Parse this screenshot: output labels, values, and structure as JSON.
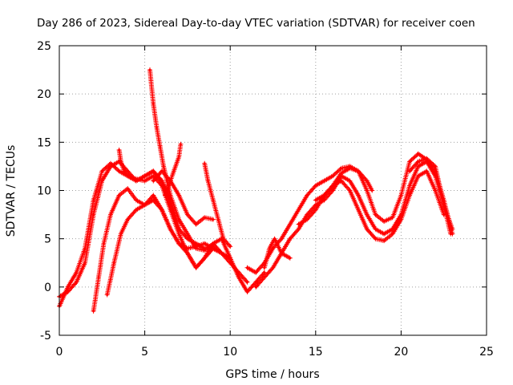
{
  "chart_data": {
    "type": "scatter",
    "title": "Day 286 of 2023, Sidereal Day-to-day VTEC variation (SDTVAR) for receiver coen",
    "xlabel": "GPS time / hours",
    "ylabel": "SDTVAR / TECUs",
    "xlim": [
      0,
      25
    ],
    "ylim": [
      -5,
      25
    ],
    "xticks": [
      0,
      5,
      10,
      15,
      20,
      25
    ],
    "yticks": [
      -5,
      0,
      5,
      10,
      15,
      20,
      25
    ],
    "grid": true,
    "marker": "+",
    "color": "#ff0000",
    "series": [
      {
        "name": "track-1",
        "x": [
          0.0,
          0.5,
          1.0,
          1.5,
          2.0,
          2.5,
          3.0,
          3.5,
          4.0,
          4.5,
          5.0,
          5.5,
          6.0,
          6.5,
          7.0,
          7.5,
          8.0,
          8.5,
          9.0,
          9.5,
          10.0,
          10.5,
          11.0,
          11.5,
          12.0
        ],
        "y": [
          -2.0,
          0.0,
          1.5,
          4.0,
          9.0,
          12.0,
          12.8,
          12.0,
          11.5,
          11.2,
          11.0,
          11.5,
          10.5,
          8.0,
          5.5,
          3.5,
          2.0,
          3.0,
          4.5,
          5.0,
          3.0,
          1.0,
          -0.5,
          0.5,
          1.5
        ]
      },
      {
        "name": "track-2",
        "x": [
          0.0,
          0.5,
          1.0,
          1.5,
          2.0,
          2.5,
          3.0,
          3.5,
          4.0,
          4.5,
          5.0,
          5.5,
          6.0,
          6.5,
          7.0
        ],
        "y": [
          -1.0,
          -0.5,
          0.5,
          2.5,
          7.5,
          11.0,
          12.5,
          13.0,
          12.0,
          11.0,
          11.5,
          12.0,
          11.0,
          9.0,
          6.0
        ]
      },
      {
        "name": "track-3",
        "x": [
          2.0,
          2.3,
          2.6,
          3.0,
          3.5,
          4.0,
          4.5,
          5.0,
          5.5,
          6.0,
          6.5,
          7.0,
          7.5,
          8.0,
          8.5,
          9.0,
          9.5,
          10.0
        ],
        "y": [
          -2.5,
          1.0,
          4.5,
          7.5,
          9.5,
          10.2,
          9.0,
          8.5,
          9.5,
          8.0,
          6.0,
          4.5,
          4.0,
          4.2,
          4.5,
          4.0,
          3.5,
          3.0
        ]
      },
      {
        "name": "track-4",
        "x": [
          2.8,
          3.2,
          3.6,
          4.0,
          4.5,
          5.0,
          5.5,
          6.0,
          6.5,
          7.0,
          7.5,
          8.0,
          8.5,
          9.0
        ],
        "y": [
          -0.8,
          2.5,
          5.5,
          7.0,
          8.0,
          8.5,
          9.0,
          8.0,
          6.0,
          4.5,
          3.5,
          2.0,
          3.0,
          4.0
        ]
      },
      {
        "name": "track-5",
        "x": [
          3.5,
          3.6,
          3.8,
          4.0,
          4.5,
          5.0,
          5.5,
          6.0,
          6.5,
          7.0,
          7.5,
          8.0,
          8.5,
          9.0,
          9.5,
          10.0,
          10.5,
          11.0
        ],
        "y": [
          14.2,
          13.0,
          12.0,
          11.5,
          11.0,
          11.5,
          12.0,
          11.0,
          8.5,
          6.0,
          5.0,
          4.5,
          4.0,
          4.0,
          3.5,
          2.5,
          1.5,
          0.5
        ]
      },
      {
        "name": "track-6",
        "x": [
          5.3,
          5.5,
          5.7,
          5.9,
          6.1,
          6.3,
          6.5,
          7.0,
          7.5,
          8.0,
          8.5,
          9.0,
          9.5
        ],
        "y": [
          22.5,
          19.0,
          16.5,
          14.5,
          12.5,
          11.0,
          9.5,
          7.0,
          5.5,
          4.0,
          3.8,
          4.5,
          3.5
        ]
      },
      {
        "name": "track-7",
        "x": [
          5.5,
          6.0,
          6.5,
          7.0,
          7.5,
          8.0,
          8.5,
          9.0
        ],
        "y": [
          11.0,
          12.0,
          11.0,
          9.5,
          7.5,
          6.5,
          7.2,
          7.0
        ]
      },
      {
        "name": "track-8",
        "x": [
          6.2,
          6.4,
          6.7,
          7.0,
          7.1
        ],
        "y": [
          9.5,
          10.5,
          12.0,
          13.5,
          14.8
        ]
      },
      {
        "name": "track-9",
        "x": [
          8.5,
          8.7,
          9.0,
          9.3,
          9.6,
          10.0
        ],
        "y": [
          12.8,
          11.0,
          9.0,
          7.0,
          5.0,
          4.2
        ]
      },
      {
        "name": "track-10",
        "x": [
          11.0,
          11.5,
          12.0,
          12.5,
          13.0,
          13.5,
          14.0,
          14.5,
          15.0,
          15.5,
          16.0,
          16.5,
          17.0,
          17.5,
          18.0,
          18.5,
          19.0,
          19.5,
          20.0,
          20.5,
          21.0,
          21.5,
          22.0,
          22.5,
          23.0
        ],
        "y": [
          2.0,
          1.5,
          2.5,
          4.0,
          5.0,
          6.5,
          8.0,
          9.5,
          10.5,
          11.0,
          11.5,
          12.3,
          12.5,
          12.0,
          10.0,
          7.5,
          6.8,
          7.2,
          9.5,
          13.0,
          13.8,
          13.2,
          12.0,
          9.0,
          5.5
        ]
      },
      {
        "name": "track-11",
        "x": [
          11.5,
          12.0,
          12.5,
          13.0,
          13.5,
          14.0,
          14.5,
          15.0,
          15.5,
          16.0,
          16.5,
          17.0,
          17.5,
          18.0,
          18.5,
          19.0,
          19.5,
          20.0,
          20.5,
          21.0,
          21.5,
          22.0,
          22.5,
          23.0
        ],
        "y": [
          0.0,
          1.0,
          2.0,
          3.5,
          5.0,
          6.0,
          7.5,
          8.5,
          9.0,
          10.0,
          11.5,
          11.0,
          9.5,
          7.5,
          6.0,
          5.5,
          6.0,
          7.5,
          10.5,
          12.5,
          13.0,
          11.5,
          8.5,
          6.0
        ]
      },
      {
        "name": "track-12",
        "x": [
          14.0,
          14.5,
          15.0,
          15.5,
          16.0,
          16.5,
          17.0,
          17.5,
          18.0,
          18.5,
          19.0,
          19.5,
          20.0,
          20.5,
          21.0,
          21.5,
          22.0,
          22.5
        ],
        "y": [
          6.5,
          7.0,
          8.0,
          9.5,
          10.5,
          11.0,
          10.0,
          8.0,
          6.0,
          5.0,
          4.8,
          5.5,
          7.0,
          9.5,
          11.5,
          12.0,
          10.0,
          7.5
        ]
      },
      {
        "name": "track-13",
        "x": [
          12.0,
          12.3,
          12.6,
          13.0,
          13.5
        ],
        "y": [
          2.0,
          4.0,
          5.0,
          3.5,
          3.0
        ]
      },
      {
        "name": "track-14",
        "x": [
          15.0,
          15.5,
          16.0,
          16.5,
          17.0,
          17.5,
          18.0,
          18.3
        ],
        "y": [
          9.0,
          9.5,
          10.5,
          11.8,
          12.3,
          12.0,
          11.0,
          10.0
        ]
      },
      {
        "name": "track-15",
        "x": [
          20.5,
          21.0,
          21.5,
          22.0,
          22.5,
          22.9
        ],
        "y": [
          12.0,
          13.0,
          13.3,
          12.5,
          8.5,
          5.5
        ]
      }
    ]
  }
}
